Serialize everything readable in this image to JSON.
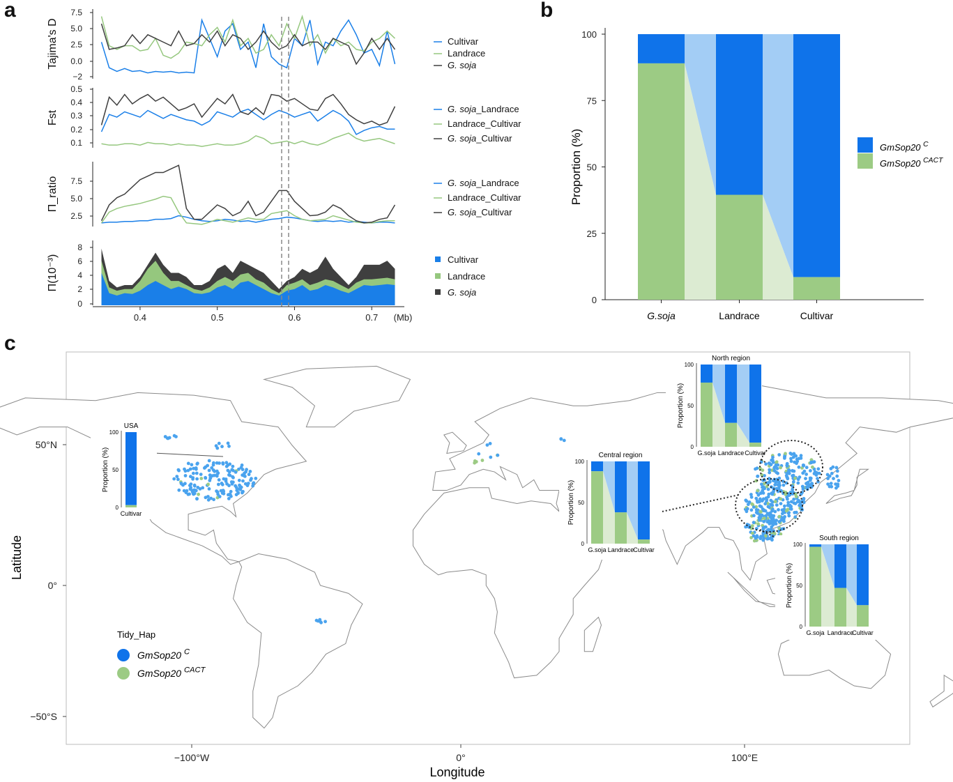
{
  "colors": {
    "cultivar": "#1a7fe8",
    "landrace": "#95c77e",
    "gsoja": "#3f3f3f",
    "C": "#0f73ea",
    "CACT": "#9ccb84",
    "connC": "#a3cdf5",
    "connCACT": "#dcebd2"
  },
  "panel_labels": {
    "a": "a",
    "b": "b",
    "c": "c"
  },
  "chart_data": [
    {
      "id": "tajima",
      "type": "line",
      "ylabel": "Tajima's D",
      "yticks": [
        "7.5",
        "5.0",
        "2.5",
        "0.0",
        "−2"
      ],
      "ylim": [
        -2,
        7.5
      ],
      "x": [
        0.35,
        0.36,
        0.37,
        0.38,
        0.39,
        0.4,
        0.41,
        0.42,
        0.43,
        0.44,
        0.45,
        0.46,
        0.47,
        0.48,
        0.49,
        0.5,
        0.51,
        0.52,
        0.53,
        0.54,
        0.55,
        0.56,
        0.57,
        0.58,
        0.59,
        0.6,
        0.61,
        0.62,
        0.63,
        0.64,
        0.65,
        0.66,
        0.67,
        0.68,
        0.69,
        0.7,
        0.71,
        0.72,
        0.73
      ],
      "series": [
        {
          "name": "Cultivar",
          "values": [
            3,
            -0.5,
            -1.0,
            -0.6,
            -1.0,
            -0.9,
            -1.2,
            -1.0,
            -1.1,
            -1.0,
            -1.2,
            -1.1,
            -1.2,
            6.0,
            3.5,
            1.0,
            4.5,
            5.5,
            2.0,
            3.0,
            -0.5,
            5.5,
            1.0,
            0.0,
            -0.5,
            3.5,
            2.5,
            6.0,
            0.0,
            3.0,
            2.5,
            4.5,
            6.0,
            4.0,
            1.5,
            2.0,
            -0.2,
            4.5,
            0.0
          ]
        },
        {
          "name": "Landrace",
          "values": [
            6.5,
            2.5,
            2.0,
            2.5,
            2.5,
            1.8,
            2.0,
            3.5,
            1.2,
            0.8,
            1.5,
            3.0,
            2.8,
            2.5,
            4.0,
            5.0,
            3.0,
            6.0,
            2.5,
            3.5,
            1.5,
            2.0,
            4.0,
            2.5,
            5.5,
            3.5,
            6.5,
            2.5,
            4.0,
            1.5,
            3.5,
            2.5,
            3.0,
            2.0,
            1.8,
            3.0,
            3.5,
            4.5,
            3.5
          ]
        },
        {
          "name": "G. soja",
          "values": [
            5.5,
            2.0,
            2.2,
            2.5,
            4.0,
            2.8,
            4.0,
            3.5,
            3.0,
            2.5,
            4.5,
            2.5,
            2.8,
            4.0,
            3.0,
            4.5,
            2.5,
            4.0,
            3.5,
            2.0,
            3.0,
            4.5,
            3.0,
            2.0,
            2.5,
            4.0,
            2.5,
            3.0,
            3.0,
            2.0,
            3.5,
            3.0,
            2.5,
            0.0,
            1.5,
            3.5,
            2.0,
            3.5,
            2.0
          ]
        }
      ],
      "legend": [
        "Cultivar",
        "Landrace",
        "G. soja"
      ]
    },
    {
      "id": "fst",
      "type": "line",
      "ylabel": "Fst",
      "yticks": [
        "0.5",
        "0.4",
        "0.3",
        "0.2",
        "0.1"
      ],
      "ylim": [
        0.05,
        0.5
      ],
      "x": [
        0.35,
        0.36,
        0.37,
        0.38,
        0.39,
        0.4,
        0.41,
        0.42,
        0.43,
        0.44,
        0.45,
        0.46,
        0.47,
        0.48,
        0.49,
        0.5,
        0.51,
        0.52,
        0.53,
        0.54,
        0.55,
        0.56,
        0.57,
        0.58,
        0.59,
        0.6,
        0.61,
        0.62,
        0.63,
        0.64,
        0.65,
        0.66,
        0.67,
        0.68,
        0.69,
        0.7,
        0.71,
        0.72,
        0.73
      ],
      "series": [
        {
          "name": "G. soja_Landrace",
          "values": [
            0.17,
            0.3,
            0.28,
            0.32,
            0.3,
            0.28,
            0.33,
            0.3,
            0.27,
            0.3,
            0.28,
            0.26,
            0.25,
            0.22,
            0.25,
            0.32,
            0.3,
            0.28,
            0.32,
            0.34,
            0.3,
            0.26,
            0.3,
            0.33,
            0.31,
            0.28,
            0.3,
            0.32,
            0.25,
            0.29,
            0.33,
            0.3,
            0.25,
            0.15,
            0.18,
            0.2,
            0.21,
            0.19,
            0.19
          ]
        },
        {
          "name": "Landrace_Cultivar",
          "values": [
            0.08,
            0.07,
            0.07,
            0.08,
            0.08,
            0.07,
            0.09,
            0.08,
            0.08,
            0.07,
            0.08,
            0.07,
            0.07,
            0.06,
            0.07,
            0.08,
            0.07,
            0.07,
            0.08,
            0.1,
            0.14,
            0.12,
            0.08,
            0.09,
            0.1,
            0.08,
            0.1,
            0.08,
            0.07,
            0.09,
            0.12,
            0.14,
            0.16,
            0.12,
            0.1,
            0.11,
            0.12,
            0.1,
            0.08
          ]
        },
        {
          "name": "G. soja_Cultivar",
          "values": [
            0.22,
            0.43,
            0.37,
            0.45,
            0.38,
            0.42,
            0.45,
            0.4,
            0.43,
            0.38,
            0.33,
            0.35,
            0.38,
            0.28,
            0.35,
            0.42,
            0.38,
            0.45,
            0.32,
            0.3,
            0.35,
            0.3,
            0.45,
            0.44,
            0.4,
            0.42,
            0.38,
            0.34,
            0.33,
            0.42,
            0.45,
            0.38,
            0.3,
            0.26,
            0.23,
            0.25,
            0.22,
            0.24,
            0.36
          ]
        }
      ],
      "legend": [
        "G. soja_Landrace",
        "Landrace_Cultivar",
        "G. soja_Cultivar"
      ]
    },
    {
      "id": "piratio",
      "type": "line",
      "ylabel": "Π_ratio",
      "yticks": [
        "7.5",
        "5.0",
        "2.5"
      ],
      "ylim": [
        1,
        10
      ],
      "x": [
        0.35,
        0.36,
        0.37,
        0.38,
        0.39,
        0.4,
        0.41,
        0.42,
        0.43,
        0.44,
        0.45,
        0.46,
        0.47,
        0.48,
        0.49,
        0.5,
        0.51,
        0.52,
        0.53,
        0.54,
        0.55,
        0.56,
        0.57,
        0.58,
        0.59,
        0.6,
        0.61,
        0.62,
        0.63,
        0.64,
        0.65,
        0.66,
        0.67,
        0.68,
        0.69,
        0.7,
        0.71,
        0.72,
        0.73
      ],
      "series": [
        {
          "name": "G. soja_Landrace",
          "values": [
            1.5,
            1.6,
            1.6,
            1.7,
            1.7,
            1.8,
            1.8,
            2.0,
            2.0,
            2.1,
            2.5,
            2.3,
            2.0,
            1.8,
            1.7,
            1.8,
            2.0,
            1.9,
            1.7,
            1.8,
            1.6,
            1.8,
            2.0,
            2.1,
            2.3,
            2.2,
            2.0,
            1.8,
            1.7,
            1.8,
            1.7,
            1.8,
            1.6,
            1.7,
            1.6,
            1.5,
            1.6,
            1.6,
            1.5
          ]
        },
        {
          "name": "Landrace_Cultivar",
          "values": [
            1.5,
            3.0,
            3.5,
            3.8,
            4.0,
            4.2,
            4.5,
            4.8,
            5.2,
            5.0,
            3.0,
            1.5,
            1.4,
            1.3,
            1.6,
            2.0,
            1.8,
            1.6,
            1.9,
            2.2,
            2.0,
            2.0,
            2.8,
            3.0,
            3.2,
            2.5,
            2.0,
            1.8,
            1.9,
            2.0,
            2.5,
            2.2,
            1.9,
            1.6,
            1.5,
            1.5,
            1.7,
            1.8,
            1.8
          ]
        },
        {
          "name": "G. soja_Cultivar",
          "values": [
            1.8,
            4.0,
            5.0,
            5.5,
            6.5,
            7.5,
            8.0,
            8.5,
            8.5,
            9.0,
            9.5,
            3.5,
            2.0,
            2.0,
            3.0,
            4.0,
            3.5,
            2.5,
            3.0,
            4.5,
            2.5,
            3.0,
            4.5,
            6.0,
            6.0,
            4.5,
            3.5,
            2.5,
            2.6,
            3.0,
            4.0,
            3.5,
            2.5,
            1.8,
            1.5,
            1.6,
            2.0,
            2.2,
            4.0
          ]
        }
      ],
      "legend": [
        "G. soja_Landrace",
        "Landrace_Cultivar",
        "G. soja_Cultivar"
      ]
    },
    {
      "id": "pi",
      "type": "area",
      "ylabel": "Π(10⁻³)",
      "yticks": [
        "8",
        "6",
        "4",
        "2",
        "0"
      ],
      "ylim": [
        0,
        8
      ],
      "xticks": [
        "0.4",
        "0.5",
        "0.6",
        "0.7"
      ],
      "xunit": "(Mb)",
      "x": [
        0.35,
        0.36,
        0.37,
        0.38,
        0.39,
        0.4,
        0.41,
        0.42,
        0.43,
        0.44,
        0.45,
        0.46,
        0.47,
        0.48,
        0.49,
        0.5,
        0.51,
        0.52,
        0.53,
        0.54,
        0.55,
        0.56,
        0.57,
        0.58,
        0.59,
        0.6,
        0.61,
        0.62,
        0.63,
        0.64,
        0.65,
        0.66,
        0.67,
        0.68,
        0.69,
        0.7,
        0.71,
        0.72,
        0.73
      ],
      "series": [
        {
          "name": "Cultivar",
          "values": [
            4.0,
            1.5,
            1.2,
            1.5,
            1.4,
            1.8,
            2.5,
            3.0,
            2.5,
            2.0,
            2.3,
            2.0,
            1.5,
            1.4,
            1.6,
            2.2,
            2.5,
            2.0,
            2.8,
            3.0,
            2.5,
            2.0,
            1.5,
            1.2,
            1.8,
            2.0,
            2.5,
            1.8,
            2.0,
            2.5,
            2.2,
            1.8,
            1.5,
            2.0,
            2.5,
            2.4,
            2.5,
            2.6,
            2.5
          ]
        },
        {
          "name": "Landrace",
          "values": [
            5.5,
            2.2,
            1.8,
            2.0,
            2.0,
            3.0,
            4.5,
            5.5,
            4.0,
            3.0,
            3.0,
            2.5,
            2.0,
            1.8,
            2.2,
            3.0,
            3.5,
            3.0,
            3.8,
            4.0,
            3.2,
            2.8,
            2.0,
            1.5,
            2.5,
            2.8,
            3.2,
            2.5,
            2.8,
            3.2,
            3.0,
            2.5,
            2.0,
            2.8,
            3.2,
            3.2,
            3.3,
            3.4,
            3.2
          ]
        },
        {
          "name": "G. soja",
          "values": [
            7.0,
            3.0,
            2.2,
            2.5,
            2.5,
            3.5,
            5.0,
            6.5,
            5.0,
            4.0,
            4.0,
            3.5,
            2.5,
            2.5,
            3.0,
            4.5,
            5.0,
            4.0,
            5.5,
            5.0,
            4.5,
            4.0,
            3.0,
            2.0,
            3.0,
            3.5,
            4.5,
            4.0,
            4.5,
            6.0,
            4.5,
            3.5,
            2.5,
            3.5,
            5.0,
            5.0,
            5.0,
            5.5,
            4.5
          ]
        }
      ],
      "legend": [
        "Cultivar",
        "Landrace",
        "G. soja"
      ]
    },
    {
      "id": "proportion",
      "type": "bar",
      "stacked": true,
      "ylabel": "Proportion (%)",
      "yticks": [
        "100",
        "75",
        "50",
        "25",
        "0"
      ],
      "ylim": [
        0,
        100
      ],
      "categories": [
        "G.soja",
        "Landrace",
        "Cultivar"
      ],
      "series": [
        {
          "name": "GmSop20 CACT",
          "values": [
            89,
            39.5,
            8.5
          ]
        },
        {
          "name": "GmSop20 C",
          "values": [
            11,
            60.5,
            91.5
          ]
        }
      ],
      "legend": {
        "C": "GmSop20",
        "C_sup": "C",
        "CACT": "GmSop20",
        "CACT_sup": "CACT"
      }
    },
    {
      "id": "map",
      "type": "scatter",
      "title": "",
      "xlabel": "Longitude",
      "ylabel": "Latitude",
      "xticks": [
        "−100°W",
        "0°",
        "100°E"
      ],
      "yticks": [
        "50°N",
        "0°",
        "−50°S"
      ],
      "legend_title": "Tidy_Hap",
      "legend": [
        {
          "label": "GmSop20",
          "sup": "C"
        },
        {
          "label": "GmSop20",
          "sup": "CACT"
        }
      ],
      "insets": [
        {
          "title": "USA",
          "ylabel": "Proportion (%)",
          "yticks": [
            "100",
            "50",
            "0"
          ],
          "categories": [
            "Cultivar"
          ],
          "CACT": [
            3
          ]
        },
        {
          "title": "North region",
          "ylabel": "Proportion (%)",
          "yticks": [
            "100",
            "50",
            "0"
          ],
          "categories": [
            "G.soja",
            "Landrace",
            "Cultivar"
          ],
          "CACT": [
            78,
            29,
            5
          ]
        },
        {
          "title": "Central region",
          "ylabel": "Proportion (%)",
          "yticks": [
            "100",
            "50",
            "0"
          ],
          "categories": [
            "G.soja",
            "Landrace",
            "Cultivar"
          ],
          "CACT": [
            88,
            38,
            5
          ]
        },
        {
          "title": "South region",
          "ylabel": "Proportion (%)",
          "yticks": [
            "100",
            "50",
            "0"
          ],
          "categories": [
            "G.soja",
            "Landrace",
            "Cultivar"
          ],
          "CACT": [
            97,
            47,
            26
          ]
        }
      ]
    }
  ]
}
